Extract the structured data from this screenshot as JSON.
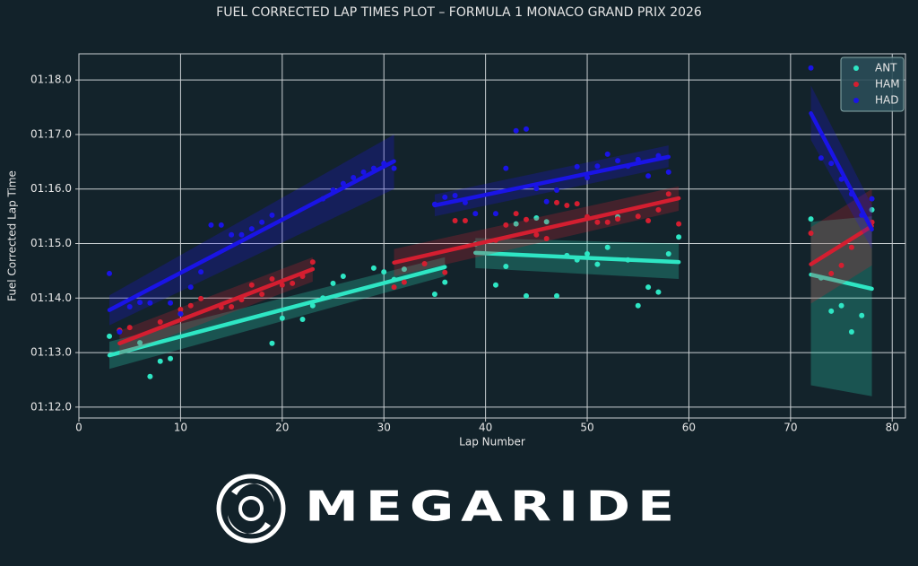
{
  "chart_data": {
    "type": "scatter",
    "title": "FUEL CORRECTED LAP TIMES PLOT – FORMULA 1 MONACO GRAND PRIX 2026",
    "x_label": "Lap Number",
    "y_label": "Fuel Corrected Lap Time",
    "xlim": [
      0,
      81.3
    ],
    "ylim": [
      71.8,
      78.48
    ],
    "xticks": [
      0,
      10,
      20,
      30,
      40,
      50,
      60,
      70,
      80
    ],
    "yticks": [
      {
        "value": 72,
        "label": "01:12.0"
      },
      {
        "value": 73,
        "label": "01:13.0"
      },
      {
        "value": 74,
        "label": "01:14.0"
      },
      {
        "value": 75,
        "label": "01:15.0"
      },
      {
        "value": 76,
        "label": "01:16.0"
      },
      {
        "value": 77,
        "label": "01:17.0"
      },
      {
        "value": 78,
        "label": "01:18.0"
      }
    ],
    "grid": true,
    "legend": "upper right",
    "series": [
      {
        "name": "ANT",
        "color": "#2ee6c4",
        "x": [
          3,
          4,
          6,
          7,
          8,
          9,
          10,
          19,
          20,
          22,
          23,
          24,
          25,
          26,
          29,
          30,
          31,
          32,
          35,
          36,
          39,
          41,
          42,
          43,
          44,
          45,
          46,
          47,
          48,
          49,
          50,
          51,
          52,
          53,
          54,
          55,
          56,
          57,
          58,
          59,
          72,
          73,
          74,
          75,
          76,
          77,
          78
        ],
        "values": [
          73.3,
          73.4,
          73.18,
          72.56,
          72.84,
          72.89,
          73.71,
          73.17,
          73.63,
          73.61,
          73.86,
          74.0,
          74.27,
          74.4,
          74.55,
          74.48,
          74.34,
          74.53,
          74.07,
          74.29,
          74.99,
          74.24,
          74.58,
          75.36,
          74.04,
          75.47,
          75.4,
          74.04,
          74.78,
          74.7,
          74.81,
          74.62,
          74.93,
          75.49,
          74.7,
          73.86,
          74.2,
          74.11,
          74.81,
          75.12,
          75.45,
          74.37,
          73.76,
          73.86,
          73.38,
          73.68,
          75.62
        ],
        "trends": [
          {
            "x": [
              3,
              36
            ],
            "values": [
              72.95,
              74.57
            ],
            "ci_lower": [
              72.7,
              74.4
            ],
            "ci_upper": [
              73.2,
              74.75
            ]
          },
          {
            "x": [
              39,
              59
            ],
            "values": [
              74.83,
              74.66
            ],
            "ci_lower": [
              74.55,
              74.35
            ],
            "ci_upper": [
              75.1,
              75.0
            ]
          },
          {
            "x": [
              72,
              78
            ],
            "values": [
              74.43,
              74.17
            ],
            "ci_lower": [
              72.4,
              72.2
            ],
            "ci_upper": [
              75.4,
              75.5
            ]
          }
        ]
      },
      {
        "name": "HAM",
        "color": "#d41e30",
        "x": [
          4,
          5,
          8,
          10,
          11,
          12,
          14,
          15,
          16,
          17,
          18,
          19,
          20,
          21,
          22,
          23,
          31,
          32,
          34,
          36,
          37,
          38,
          41,
          42,
          43,
          44,
          45,
          46,
          47,
          48,
          49,
          50,
          51,
          52,
          53,
          55,
          56,
          57,
          58,
          59,
          72,
          74,
          75,
          76,
          78
        ],
        "values": [
          73.41,
          73.46,
          73.56,
          73.79,
          73.86,
          73.99,
          73.83,
          73.84,
          73.97,
          74.24,
          74.07,
          74.35,
          74.24,
          74.27,
          74.4,
          74.66,
          74.2,
          74.29,
          74.63,
          74.47,
          75.42,
          75.42,
          75.06,
          75.34,
          75.55,
          75.44,
          75.16,
          75.09,
          75.75,
          75.7,
          75.73,
          75.49,
          75.39,
          75.39,
          75.45,
          75.5,
          75.42,
          75.62,
          75.91,
          75.36,
          75.19,
          74.45,
          74.6,
          74.93,
          75.39
        ],
        "trends": [
          {
            "x": [
              4,
              23
            ],
            "values": [
              73.17,
              74.53
            ],
            "ci_lower": [
              72.95,
              74.3
            ],
            "ci_upper": [
              73.4,
              74.75
            ]
          },
          {
            "x": [
              31,
              59
            ],
            "values": [
              74.65,
              75.83
            ],
            "ci_lower": [
              74.4,
              75.6
            ],
            "ci_upper": [
              74.9,
              76.05
            ]
          },
          {
            "x": [
              72,
              78
            ],
            "values": [
              74.62,
              75.32
            ],
            "ci_lower": [
              73.9,
              74.6
            ],
            "ci_upper": [
              75.3,
              76.0
            ]
          }
        ]
      },
      {
        "name": "HAD",
        "color": "#1a14e6",
        "x": [
          3,
          4,
          5,
          6,
          7,
          9,
          10,
          11,
          12,
          13,
          14,
          15,
          16,
          17,
          18,
          19,
          24,
          25,
          26,
          27,
          28,
          29,
          30,
          31,
          35,
          36,
          37,
          38,
          39,
          41,
          42,
          43,
          44,
          45,
          46,
          47,
          49,
          50,
          51,
          52,
          53,
          54,
          55,
          56,
          57,
          58,
          72,
          73,
          74,
          75,
          76,
          77,
          78
        ],
        "values": [
          74.45,
          73.38,
          73.84,
          73.92,
          73.91,
          73.91,
          73.71,
          74.2,
          74.48,
          75.34,
          75.34,
          75.16,
          75.16,
          75.27,
          75.39,
          75.52,
          75.82,
          75.98,
          76.1,
          76.21,
          76.31,
          76.38,
          76.47,
          76.38,
          75.72,
          75.85,
          75.88,
          75.75,
          75.55,
          75.55,
          76.38,
          77.07,
          77.1,
          76.01,
          75.77,
          75.98,
          76.41,
          76.21,
          76.42,
          76.64,
          76.52,
          76.42,
          76.54,
          76.24,
          76.61,
          76.31,
          78.22,
          76.57,
          76.47,
          76.18,
          75.91,
          75.52,
          75.82
        ],
        "trends": [
          {
            "x": [
              3,
              31
            ],
            "values": [
              73.78,
              76.51
            ],
            "ci_lower": [
              73.5,
              76.0
            ],
            "ci_upper": [
              74.05,
              77.0
            ]
          },
          {
            "x": [
              35,
              58
            ],
            "values": [
              75.7,
              76.59
            ],
            "ci_lower": [
              75.5,
              76.4
            ],
            "ci_upper": [
              75.9,
              76.8
            ]
          },
          {
            "x": [
              72,
              78
            ],
            "values": [
              77.39,
              75.26
            ],
            "ci_lower": [
              76.9,
              74.9
            ],
            "ci_upper": [
              77.9,
              75.7
            ]
          }
        ]
      }
    ]
  },
  "footer": {
    "logo": "MEGARIDE"
  }
}
